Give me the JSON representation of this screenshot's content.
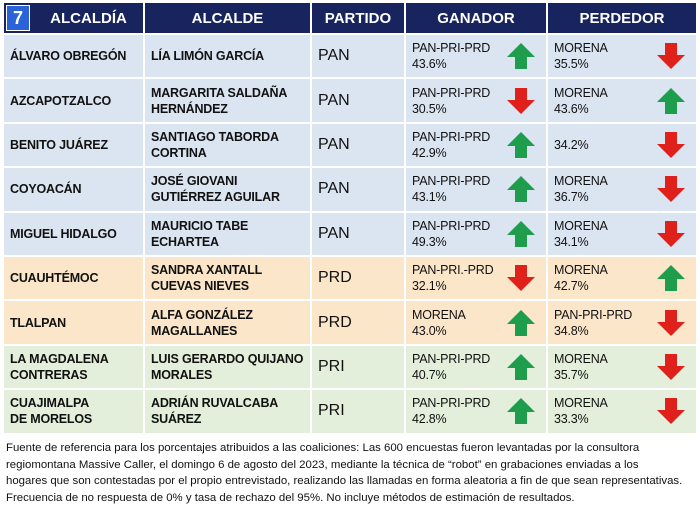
{
  "header": {
    "badge": "7",
    "columns": [
      "ALCALDÍA",
      "ALCALDE",
      "PARTIDO",
      "GANADOR",
      "PERDEDOR"
    ]
  },
  "table": {
    "rows": [
      {
        "alcaldia": [
          "ÁLVARO OBREGÓN"
        ],
        "alcalde": [
          "LÍA LIMÓN GARCÍA"
        ],
        "partido": "PAN",
        "color": "#dbe5f1",
        "ganador": {
          "party": "PAN-PRI-PRD",
          "pct": "43.6%",
          "arrow": "up"
        },
        "perdedor": {
          "party": "MORENA",
          "pct": "35.5%",
          "arrow": "down"
        }
      },
      {
        "alcaldia": [
          "AZCAPOTZALCO"
        ],
        "alcalde": [
          "MARGARITA SALDAÑA",
          "HERNÁNDEZ"
        ],
        "partido": "PAN",
        "color": "#dbe5f1",
        "ganador": {
          "party": "PAN-PRI-PRD",
          "pct": "30.5%",
          "arrow": "down"
        },
        "perdedor": {
          "party": "MORENA",
          "pct": "43.6%",
          "arrow": "up"
        }
      },
      {
        "alcaldia": [
          "BENITO JUÁREZ"
        ],
        "alcalde": [
          "SANTIAGO TABORDA",
          "CORTINA"
        ],
        "partido": "PAN",
        "color": "#dbe5f1",
        "ganador": {
          "party": "PAN-PRI-PRD",
          "pct": "42.9%",
          "arrow": "up"
        },
        "perdedor": {
          "pct": "34.2%",
          "arrow": "down"
        }
      },
      {
        "alcaldia": [
          "COYOACÁN"
        ],
        "alcalde": [
          "JOSÉ GIOVANI",
          "GUTIÉRREZ AGUILAR"
        ],
        "partido": "PAN",
        "color": "#dbe5f1",
        "ganador": {
          "party": "PAN-PRI-PRD",
          "pct": "43.1%",
          "arrow": "up"
        },
        "perdedor": {
          "party": "MORENA",
          "pct": "36.7%",
          "arrow": "down"
        }
      },
      {
        "alcaldia": [
          "MIGUEL HIDALGO"
        ],
        "alcalde": [
          "MAURICIO TABE",
          "ECHARTEA"
        ],
        "partido": "PAN",
        "color": "#dbe5f1",
        "ganador": {
          "party": "PAN-PRI-PRD",
          "pct": "49.3%",
          "arrow": "up"
        },
        "perdedor": {
          "party": "MORENA",
          "pct": "34.1%",
          "arrow": "down"
        }
      },
      {
        "alcaldia": [
          "CUAUHTÉMOC"
        ],
        "alcalde": [
          "SANDRA XANTALL",
          "CUEVAS NIEVES"
        ],
        "partido": "PRD",
        "color": "#fce6c9",
        "ganador": {
          "party": "PAN-PRI.-PRD",
          "pct": "32.1%",
          "arrow": "down"
        },
        "perdedor": {
          "party": "MORENA",
          "pct": "42.7%",
          "arrow": "up"
        }
      },
      {
        "alcaldia": [
          "TLALPAN"
        ],
        "alcalde": [
          "ALFA GONZÁLEZ",
          "MAGALLANES"
        ],
        "partido": "PRD",
        "color": "#fce6c9",
        "ganador": {
          "party": "MORENA",
          "pct": "43.0%",
          "arrow": "up"
        },
        "perdedor": {
          "party": "PAN-PRI-PRD",
          "pct": "34.8%",
          "arrow": "down"
        }
      },
      {
        "alcaldia": [
          "LA MAGDALENA",
          "CONTRERAS"
        ],
        "alcalde": [
          "LUIS GERARDO QUIJANO",
          "MORALES"
        ],
        "partido": "PRI",
        "color": "#e3efda",
        "ganador": {
          "party": "PAN-PRI-PRD",
          "pct": "40.7%",
          "arrow": "up"
        },
        "perdedor": {
          "party": "MORENA",
          "pct": "35.7%",
          "arrow": "down"
        }
      },
      {
        "alcaldia": [
          "CUAJIMALPA",
          "DE MORELOS"
        ],
        "alcalde": [
          "ADRIÁN RUVALCABA",
          "SUÁREZ"
        ],
        "partido": "PRI",
        "color": "#e3efda",
        "ganador": {
          "party": "PAN-PRI-PRD",
          "pct": "42.8%",
          "arrow": "up"
        },
        "perdedor": {
          "party": "MORENA",
          "pct": "33.3%",
          "arrow": "down"
        }
      }
    ]
  },
  "footer": {
    "lines": [
      "Fuente de referencia para los porcentajes atribuidos a las coaliciones: Las 600 encuestas fueron levantadas por la consultora",
      "regiomontana Massive Caller, el domingo 6 de agosto del 2023, mediante la técnica de “robot” en grabaciones enviadas a los",
      "hogares que son contestadas por el propio entrevistado, realizando las llamadas en forma aleatoria a fin de que sean representativas.",
      "Frecuencia de no respuesta de 0% y tasa de rechazo del 95%. No incluye métodos de estimación de resultados."
    ]
  }
}
